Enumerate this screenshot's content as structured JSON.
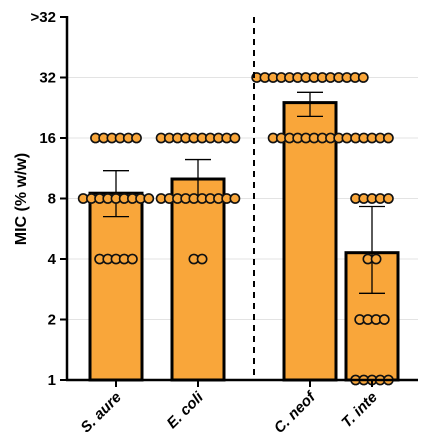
{
  "chart_data": {
    "type": "bar",
    "ylabel": "MIC (% w/w)",
    "yscale": "log2",
    "yticks": [
      {
        "value": 1,
        "label": "1"
      },
      {
        "value": 2,
        "label": "2"
      },
      {
        "value": 4,
        "label": "4"
      },
      {
        "value": 8,
        "label": "8"
      },
      {
        "value": 16,
        "label": "16"
      },
      {
        "value": 32,
        "label": "32"
      },
      {
        "value": 64,
        "label": ">32"
      }
    ],
    "ylim": [
      1,
      64
    ],
    "grid": true,
    "categories": [
      "S. aure",
      "E. coli",
      "C. neof",
      "T. inte"
    ],
    "values": [
      8.5,
      10.0,
      24.0,
      4.3
    ],
    "error_low": [
      6.5,
      8.0,
      20.5,
      2.7
    ],
    "error_high": [
      11.0,
      12.5,
      27.0,
      7.3
    ],
    "points": [
      [
        4,
        4,
        4,
        4,
        4,
        8,
        8,
        8,
        8,
        8,
        8,
        8,
        8,
        8,
        16,
        16,
        16,
        16,
        16,
        16
      ],
      [
        4,
        4,
        8,
        8,
        8,
        8,
        8,
        8,
        8,
        8,
        8,
        8,
        16,
        16,
        16,
        16,
        16,
        16,
        16,
        16,
        16,
        16
      ],
      [
        16,
        16,
        16,
        16,
        16,
        16,
        16,
        16,
        16,
        16,
        32,
        32,
        32,
        32,
        32,
        32,
        32,
        32,
        32,
        32,
        32,
        32,
        32,
        32
      ],
      [
        1,
        1,
        1,
        1,
        1,
        2,
        2,
        2,
        2,
        4,
        4,
        8,
        8,
        8,
        8,
        8,
        16,
        16,
        16,
        16,
        16
      ]
    ],
    "divider_after_category": 1,
    "bar_color": "#f9a63a",
    "edge_color": "#000000"
  }
}
